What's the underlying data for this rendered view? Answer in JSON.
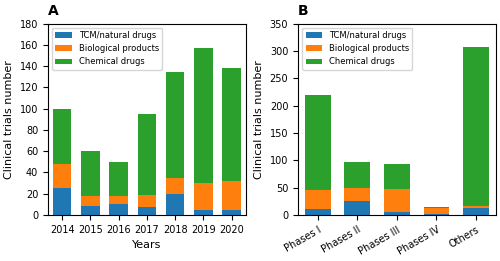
{
  "chart_data": [
    {
      "type": "bar",
      "stacked": true,
      "title": "A",
      "categories": [
        "2014",
        "2015",
        "2016",
        "2017",
        "2018",
        "2019",
        "2020"
      ],
      "series": [
        {
          "name": "TCM/natural drugs",
          "values": [
            25,
            8,
            10,
            7,
            20,
            5,
            5
          ]
        },
        {
          "name": "Biological products",
          "values": [
            23,
            10,
            8,
            12,
            15,
            25,
            27
          ]
        },
        {
          "name": "Chemical drugs",
          "values": [
            52,
            42,
            32,
            76,
            99,
            127,
            106
          ]
        }
      ],
      "xlabel": "Years",
      "ylabel": "Clinical trials number",
      "ylim": [
        0,
        180
      ],
      "yticks": [
        0,
        20,
        40,
        60,
        80,
        100,
        120,
        140,
        160,
        180
      ],
      "legend": "upper left"
    },
    {
      "type": "bar",
      "stacked": true,
      "title": "B",
      "categories": [
        "Phases I",
        "Phases II",
        "Phases III",
        "Phases IV",
        "Others"
      ],
      "series": [
        {
          "name": "TCM/natural drugs",
          "values": [
            10,
            25,
            5,
            2,
            12
          ]
        },
        {
          "name": "Biological products",
          "values": [
            35,
            25,
            43,
            10,
            5
          ]
        },
        {
          "name": "Chemical drugs",
          "values": [
            175,
            47,
            45,
            3,
            290
          ]
        }
      ],
      "ylabel": "Clinical trials number",
      "ylim": [
        0,
        350
      ],
      "yticks": [
        0,
        50,
        100,
        150,
        200,
        250,
        300,
        350
      ],
      "legend": "upper left"
    }
  ]
}
